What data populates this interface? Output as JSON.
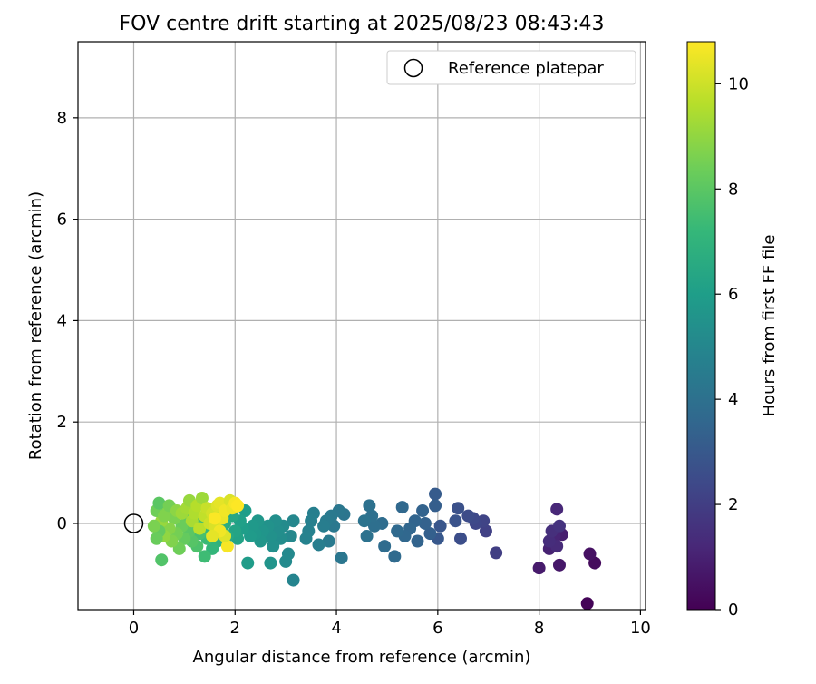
{
  "chart_data": {
    "type": "scatter",
    "title": "FOV centre drift starting at 2025/08/23 08:43:43",
    "xlabel": "Angular distance from reference (arcmin)",
    "ylabel": "Rotation from reference (arcmin)",
    "xlim": [
      -1.1,
      10.1
    ],
    "ylim": [
      -1.7,
      9.5
    ],
    "xticks": [
      0,
      2,
      4,
      6,
      8,
      10
    ],
    "yticks": [
      0,
      2,
      4,
      6,
      8
    ],
    "grid": true,
    "legend": {
      "position": "top-right",
      "entries": [
        "Reference platepar"
      ]
    },
    "reference_point": {
      "x": 0,
      "y": 0,
      "name": "Reference platepar"
    },
    "colorbar": {
      "label": "Hours from first FF file",
      "range": [
        0,
        10.8
      ],
      "ticks": [
        0,
        2,
        4,
        6,
        8,
        10
      ],
      "colormap": [
        "#440154",
        "#482878",
        "#3e4989",
        "#31688e",
        "#26828e",
        "#1f9e89",
        "#35b779",
        "#6ece58",
        "#b5de2b",
        "#fde725"
      ]
    },
    "points": [
      {
        "x": 8.95,
        "y": -1.58,
        "h": 0.1
      },
      {
        "x": 9.1,
        "y": -0.78,
        "h": 0.3
      },
      {
        "x": 9.0,
        "y": -0.6,
        "h": 0.5
      },
      {
        "x": 8.4,
        "y": -0.82,
        "h": 0.7
      },
      {
        "x": 8.45,
        "y": -0.22,
        "h": 0.9
      },
      {
        "x": 8.2,
        "y": -0.5,
        "h": 1.0
      },
      {
        "x": 8.3,
        "y": -0.25,
        "h": 1.1
      },
      {
        "x": 8.35,
        "y": -0.45,
        "h": 1.3
      },
      {
        "x": 8.2,
        "y": -0.35,
        "h": 1.4
      },
      {
        "x": 8.0,
        "y": -0.88,
        "h": 0.8
      },
      {
        "x": 8.35,
        "y": 0.28,
        "h": 1.2
      },
      {
        "x": 8.25,
        "y": -0.15,
        "h": 1.5
      },
      {
        "x": 8.4,
        "y": -0.05,
        "h": 1.6
      },
      {
        "x": 7.15,
        "y": -0.58,
        "h": 2.0
      },
      {
        "x": 6.95,
        "y": -0.15,
        "h": 2.1
      },
      {
        "x": 6.9,
        "y": 0.05,
        "h": 2.2
      },
      {
        "x": 6.75,
        "y": 0.0,
        "h": 2.3
      },
      {
        "x": 6.7,
        "y": 0.1,
        "h": 2.4
      },
      {
        "x": 6.6,
        "y": 0.15,
        "h": 2.5
      },
      {
        "x": 6.45,
        "y": -0.3,
        "h": 2.6
      },
      {
        "x": 6.4,
        "y": 0.3,
        "h": 2.7
      },
      {
        "x": 6.35,
        "y": 0.05,
        "h": 2.8
      },
      {
        "x": 6.05,
        "y": -0.05,
        "h": 2.9
      },
      {
        "x": 6.0,
        "y": -0.3,
        "h": 3.0
      },
      {
        "x": 5.95,
        "y": 0.58,
        "h": 3.1
      },
      {
        "x": 5.95,
        "y": 0.35,
        "h": 3.2
      },
      {
        "x": 5.85,
        "y": -0.2,
        "h": 3.3
      },
      {
        "x": 5.75,
        "y": 0.0,
        "h": 3.35
      },
      {
        "x": 5.7,
        "y": 0.25,
        "h": 3.4
      },
      {
        "x": 5.6,
        "y": -0.35,
        "h": 3.45
      },
      {
        "x": 5.55,
        "y": 0.05,
        "h": 3.5
      },
      {
        "x": 5.45,
        "y": -0.1,
        "h": 3.55
      },
      {
        "x": 5.35,
        "y": -0.25,
        "h": 3.6
      },
      {
        "x": 5.3,
        "y": 0.32,
        "h": 3.65
      },
      {
        "x": 5.2,
        "y": -0.15,
        "h": 3.7
      },
      {
        "x": 5.15,
        "y": -0.65,
        "h": 3.75
      },
      {
        "x": 4.95,
        "y": -0.45,
        "h": 3.8
      },
      {
        "x": 4.9,
        "y": 0.0,
        "h": 3.85
      },
      {
        "x": 4.75,
        "y": -0.05,
        "h": 3.9
      },
      {
        "x": 4.7,
        "y": 0.15,
        "h": 3.95
      },
      {
        "x": 4.65,
        "y": 0.35,
        "h": 4.0
      },
      {
        "x": 4.6,
        "y": -0.25,
        "h": 4.05
      },
      {
        "x": 4.55,
        "y": 0.05,
        "h": 4.1
      },
      {
        "x": 4.15,
        "y": 0.18,
        "h": 4.2
      },
      {
        "x": 4.1,
        "y": -0.68,
        "h": 4.25
      },
      {
        "x": 4.05,
        "y": 0.25,
        "h": 4.3
      },
      {
        "x": 3.95,
        "y": -0.05,
        "h": 4.35
      },
      {
        "x": 3.9,
        "y": 0.15,
        "h": 4.4
      },
      {
        "x": 3.85,
        "y": -0.35,
        "h": 4.45
      },
      {
        "x": 3.8,
        "y": 0.05,
        "h": 4.5
      },
      {
        "x": 3.75,
        "y": -0.05,
        "h": 4.55
      },
      {
        "x": 3.65,
        "y": -0.42,
        "h": 4.6
      },
      {
        "x": 3.55,
        "y": 0.2,
        "h": 4.65
      },
      {
        "x": 3.5,
        "y": 0.05,
        "h": 4.7
      },
      {
        "x": 3.45,
        "y": -0.15,
        "h": 4.75
      },
      {
        "x": 3.4,
        "y": -0.3,
        "h": 4.8
      },
      {
        "x": 3.15,
        "y": -1.12,
        "h": 4.9
      },
      {
        "x": 3.15,
        "y": 0.05,
        "h": 5.0
      },
      {
        "x": 3.1,
        "y": -0.25,
        "h": 5.05
      },
      {
        "x": 3.05,
        "y": -0.6,
        "h": 5.1
      },
      {
        "x": 3.0,
        "y": -0.75,
        "h": 5.15
      },
      {
        "x": 2.95,
        "y": -0.05,
        "h": 5.2
      },
      {
        "x": 2.9,
        "y": -0.3,
        "h": 5.25
      },
      {
        "x": 2.85,
        "y": -0.15,
        "h": 5.3
      },
      {
        "x": 2.8,
        "y": 0.05,
        "h": 5.35
      },
      {
        "x": 2.75,
        "y": -0.45,
        "h": 5.4
      },
      {
        "x": 2.7,
        "y": -0.25,
        "h": 5.45
      },
      {
        "x": 2.65,
        "y": -0.05,
        "h": 5.5
      },
      {
        "x": 2.7,
        "y": -0.78,
        "h": 5.55
      },
      {
        "x": 2.55,
        "y": -0.15,
        "h": 5.6
      },
      {
        "x": 2.5,
        "y": -0.35,
        "h": 5.65
      },
      {
        "x": 2.45,
        "y": 0.05,
        "h": 5.7
      },
      {
        "x": 2.4,
        "y": -0.2,
        "h": 5.75
      },
      {
        "x": 2.35,
        "y": -0.05,
        "h": 5.8
      },
      {
        "x": 2.3,
        "y": -0.25,
        "h": 5.85
      },
      {
        "x": 2.25,
        "y": -0.78,
        "h": 5.9
      },
      {
        "x": 2.2,
        "y": 0.25,
        "h": 5.95
      },
      {
        "x": 2.15,
        "y": -0.1,
        "h": 6.0
      },
      {
        "x": 2.1,
        "y": 0.05,
        "h": 6.1
      },
      {
        "x": 2.05,
        "y": -0.3,
        "h": 6.2
      },
      {
        "x": 2.0,
        "y": -0.15,
        "h": 6.3
      },
      {
        "x": 1.95,
        "y": 0.15,
        "h": 6.4
      },
      {
        "x": 1.85,
        "y": -0.25,
        "h": 6.5
      },
      {
        "x": 1.8,
        "y": 0.0,
        "h": 6.6
      },
      {
        "x": 1.75,
        "y": -0.1,
        "h": 6.7
      },
      {
        "x": 1.7,
        "y": 0.2,
        "h": 6.8
      },
      {
        "x": 1.65,
        "y": -0.35,
        "h": 6.9
      },
      {
        "x": 1.6,
        "y": 0.05,
        "h": 7.0
      },
      {
        "x": 1.55,
        "y": -0.5,
        "h": 7.1
      },
      {
        "x": 1.5,
        "y": -0.15,
        "h": 7.2
      },
      {
        "x": 1.45,
        "y": -0.3,
        "h": 7.3
      },
      {
        "x": 1.4,
        "y": -0.65,
        "h": 7.4
      },
      {
        "x": 1.35,
        "y": 0.05,
        "h": 7.5
      },
      {
        "x": 1.3,
        "y": -0.2,
        "h": 7.6
      },
      {
        "x": 1.25,
        "y": -0.45,
        "h": 7.7
      },
      {
        "x": 1.2,
        "y": -0.05,
        "h": 7.8
      },
      {
        "x": 1.15,
        "y": -0.35,
        "h": 7.9
      },
      {
        "x": 1.1,
        "y": -0.15,
        "h": 8.0
      },
      {
        "x": 1.05,
        "y": 0.1,
        "h": 8.1
      },
      {
        "x": 1.0,
        "y": -0.3,
        "h": 8.2
      },
      {
        "x": 0.95,
        "y": -0.05,
        "h": 8.3
      },
      {
        "x": 0.9,
        "y": -0.5,
        "h": 8.4
      },
      {
        "x": 0.85,
        "y": -0.2,
        "h": 8.5
      },
      {
        "x": 0.8,
        "y": 0.1,
        "h": 8.6
      },
      {
        "x": 0.75,
        "y": -0.35,
        "h": 8.7
      },
      {
        "x": 0.7,
        "y": -0.1,
        "h": 8.8
      },
      {
        "x": 0.65,
        "y": 0.3,
        "h": 8.9
      },
      {
        "x": 0.6,
        "y": -0.25,
        "h": 9.0
      },
      {
        "x": 0.55,
        "y": 0.05,
        "h": 9.1
      },
      {
        "x": 0.55,
        "y": -0.72,
        "h": 7.8
      },
      {
        "x": 0.5,
        "y": -0.15,
        "h": 8.2
      },
      {
        "x": 0.45,
        "y": 0.25,
        "h": 8.4
      },
      {
        "x": 0.4,
        "y": -0.05,
        "h": 8.6
      },
      {
        "x": 0.5,
        "y": 0.4,
        "h": 8.0
      },
      {
        "x": 0.45,
        "y": -0.3,
        "h": 8.3
      },
      {
        "x": 0.6,
        "y": 0.15,
        "h": 8.7
      },
      {
        "x": 0.7,
        "y": 0.35,
        "h": 8.5
      },
      {
        "x": 0.85,
        "y": 0.25,
        "h": 8.9
      },
      {
        "x": 0.95,
        "y": 0.2,
        "h": 9.2
      },
      {
        "x": 1.05,
        "y": 0.3,
        "h": 9.3
      },
      {
        "x": 1.1,
        "y": 0.45,
        "h": 9.1
      },
      {
        "x": 1.15,
        "y": 0.05,
        "h": 9.4
      },
      {
        "x": 1.2,
        "y": 0.2,
        "h": 9.5
      },
      {
        "x": 1.25,
        "y": 0.35,
        "h": 9.6
      },
      {
        "x": 1.3,
        "y": -0.1,
        "h": 9.7
      },
      {
        "x": 1.35,
        "y": 0.5,
        "h": 9.2
      },
      {
        "x": 1.4,
        "y": 0.15,
        "h": 9.8
      },
      {
        "x": 1.45,
        "y": 0.3,
        "h": 9.9
      },
      {
        "x": 1.5,
        "y": 0.0,
        "h": 10.0
      },
      {
        "x": 1.55,
        "y": 0.2,
        "h": 10.1
      },
      {
        "x": 1.6,
        "y": -0.05,
        "h": 10.2
      },
      {
        "x": 1.65,
        "y": 0.35,
        "h": 10.3
      },
      {
        "x": 1.7,
        "y": 0.4,
        "h": 10.4
      },
      {
        "x": 1.75,
        "y": 0.1,
        "h": 10.5
      },
      {
        "x": 1.8,
        "y": 0.25,
        "h": 10.6
      },
      {
        "x": 1.85,
        "y": -0.45,
        "h": 10.7
      },
      {
        "x": 1.9,
        "y": 0.45,
        "h": 10.2
      },
      {
        "x": 1.95,
        "y": 0.3,
        "h": 10.5
      },
      {
        "x": 2.0,
        "y": 0.4,
        "h": 10.7
      },
      {
        "x": 2.05,
        "y": 0.35,
        "h": 10.8
      },
      {
        "x": 1.8,
        "y": -0.25,
        "h": 10.3
      },
      {
        "x": 1.7,
        "y": -0.15,
        "h": 10.6
      },
      {
        "x": 1.55,
        "y": -0.25,
        "h": 10.4
      },
      {
        "x": 1.6,
        "y": 0.1,
        "h": 10.75
      }
    ]
  }
}
